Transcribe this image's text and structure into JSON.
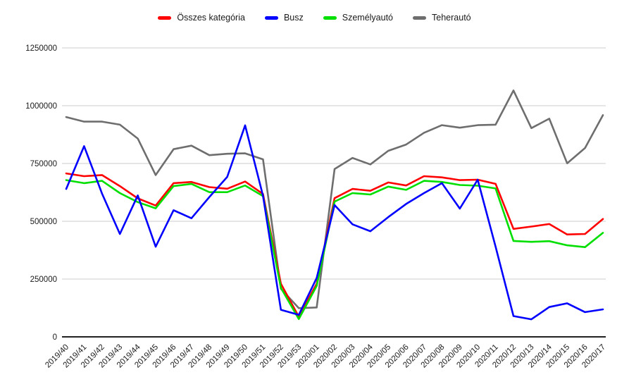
{
  "chart_data": {
    "type": "line",
    "title": "",
    "xlabel": "",
    "ylabel": "",
    "grid": true,
    "legend_position": "top",
    "ylim": [
      0,
      1250000
    ],
    "yticks": [
      0,
      250000,
      500000,
      750000,
      1000000,
      1250000
    ],
    "x": [
      "2019/40",
      "2019/41",
      "2019/42",
      "2019/43",
      "2019/44",
      "2019/45",
      "2019/46",
      "2019/47",
      "2019/48",
      "2019/49",
      "2019/50",
      "2019/51",
      "2019/52",
      "2019/53",
      "2020/01",
      "2020/02",
      "2020/03",
      "2020/04",
      "2020/05",
      "2020/06",
      "2020/07",
      "2020/08",
      "2020/09",
      "2020/10",
      "2020/11",
      "2020/12",
      "2020/13",
      "2020/14",
      "2020/15",
      "2020/16",
      "2020/17"
    ],
    "series": [
      {
        "name": "Összes kategória",
        "color": "#FF0000",
        "values": [
          707000,
          695000,
          700000,
          652000,
          599000,
          568000,
          665000,
          670000,
          648000,
          641000,
          672000,
          618000,
          230000,
          87000,
          230000,
          600000,
          640000,
          632000,
          668000,
          655000,
          695000,
          690000,
          678000,
          680000,
          662000,
          467000,
          477000,
          488000,
          443000,
          445000,
          510000
        ]
      },
      {
        "name": "Busz",
        "color": "#0000FF",
        "values": [
          640000,
          825000,
          620000,
          445000,
          612000,
          390000,
          548000,
          513000,
          605000,
          692000,
          915000,
          610000,
          117000,
          95000,
          255000,
          570000,
          487000,
          457000,
          518000,
          575000,
          622000,
          665000,
          555000,
          680000,
          390000,
          90000,
          76000,
          129000,
          145000,
          107000,
          119000
        ]
      },
      {
        "name": "Személyautó",
        "color": "#00DF00",
        "values": [
          678000,
          665000,
          675000,
          622000,
          583000,
          556000,
          652000,
          662000,
          626000,
          626000,
          655000,
          609000,
          212000,
          77000,
          220000,
          585000,
          622000,
          616000,
          650000,
          636000,
          675000,
          670000,
          657000,
          654000,
          642000,
          415000,
          411000,
          414000,
          396000,
          388000,
          450000
        ]
      },
      {
        "name": "Teherautó",
        "color": "#6E6E6E",
        "values": [
          951000,
          931000,
          931000,
          918000,
          858000,
          700000,
          812000,
          827000,
          786000,
          792000,
          794000,
          768000,
          208000,
          124000,
          127000,
          726000,
          774000,
          746000,
          805000,
          832000,
          883000,
          916000,
          905000,
          916000,
          918000,
          1066000,
          903000,
          944000,
          751000,
          817000,
          959000
        ]
      }
    ]
  },
  "colors": {
    "background": "#FFFFFF",
    "grid": "#CCCCCC",
    "axis": "#212121",
    "tick_label": "#1A1A1A"
  }
}
